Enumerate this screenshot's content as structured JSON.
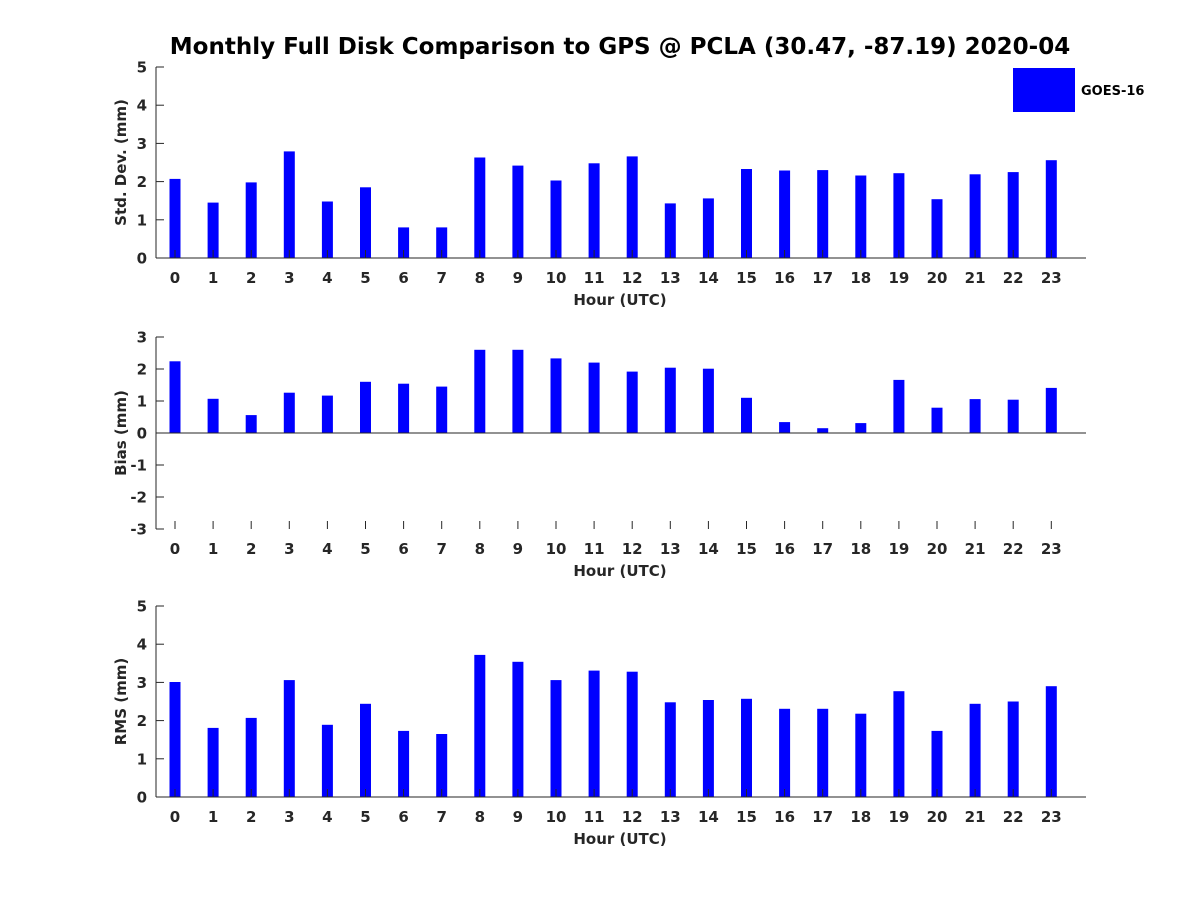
{
  "chart_data": {
    "title": "Monthly Full Disk Comparison to GPS @ PCLA (30.47, -87.19) 2020-04",
    "type": "bar",
    "legend": {
      "label": "GOES-16",
      "color": "#0000ff",
      "placement": "top-right"
    },
    "panels": [
      {
        "type": "bar",
        "xlabel": "Hour (UTC)",
        "ylabel": "Std. Dev. (mm)",
        "ylim": [
          0,
          5
        ],
        "yticks": [
          0,
          1,
          2,
          3,
          4,
          5
        ],
        "categories": [
          "0",
          "1",
          "2",
          "3",
          "4",
          "5",
          "6",
          "7",
          "8",
          "9",
          "10",
          "11",
          "12",
          "13",
          "14",
          "15",
          "16",
          "17",
          "18",
          "19",
          "20",
          "21",
          "22",
          "23"
        ],
        "series": [
          {
            "name": "GOES-16",
            "color": "#0000ff",
            "values": [
              2.07,
              1.45,
              1.98,
              2.79,
              1.48,
              1.85,
              0.8,
              0.8,
              2.63,
              2.42,
              2.03,
              2.48,
              2.66,
              1.43,
              1.56,
              2.33,
              2.29,
              2.3,
              2.16,
              2.22,
              1.54,
              2.19,
              2.25,
              2.56
            ]
          }
        ]
      },
      {
        "type": "bar",
        "xlabel": "Hour (UTC)",
        "ylabel": "Bias (mm)",
        "ylim": [
          -3,
          3
        ],
        "yticks": [
          -3,
          -2,
          -1,
          0,
          1,
          2,
          3
        ],
        "categories": [
          "0",
          "1",
          "2",
          "3",
          "4",
          "5",
          "6",
          "7",
          "8",
          "9",
          "10",
          "11",
          "12",
          "13",
          "14",
          "15",
          "16",
          "17",
          "18",
          "19",
          "20",
          "21",
          "22",
          "23"
        ],
        "series": [
          {
            "name": "GOES-16",
            "color": "#0000ff",
            "values": [
              2.24,
              1.07,
              0.56,
              1.26,
              1.17,
              1.6,
              1.54,
              1.45,
              2.6,
              2.6,
              2.33,
              2.2,
              1.92,
              2.04,
              2.01,
              1.1,
              0.34,
              0.15,
              0.31,
              1.66,
              0.79,
              1.06,
              1.04,
              1.41
            ]
          }
        ]
      },
      {
        "type": "bar",
        "xlabel": "Hour (UTC)",
        "ylabel": "RMS (mm)",
        "ylim": [
          0,
          5
        ],
        "yticks": [
          0,
          1,
          2,
          3,
          4,
          5
        ],
        "categories": [
          "0",
          "1",
          "2",
          "3",
          "4",
          "5",
          "6",
          "7",
          "8",
          "9",
          "10",
          "11",
          "12",
          "13",
          "14",
          "15",
          "16",
          "17",
          "18",
          "19",
          "20",
          "21",
          "22",
          "23"
        ],
        "series": [
          {
            "name": "GOES-16",
            "color": "#0000ff",
            "values": [
              3.01,
              1.81,
              2.07,
              3.06,
              1.89,
              2.44,
              1.73,
              1.65,
              3.72,
              3.54,
              3.06,
              3.31,
              3.28,
              2.48,
              2.54,
              2.57,
              2.31,
              2.31,
              2.18,
              2.77,
              1.73,
              2.44,
              2.5,
              2.9
            ]
          }
        ]
      }
    ]
  }
}
